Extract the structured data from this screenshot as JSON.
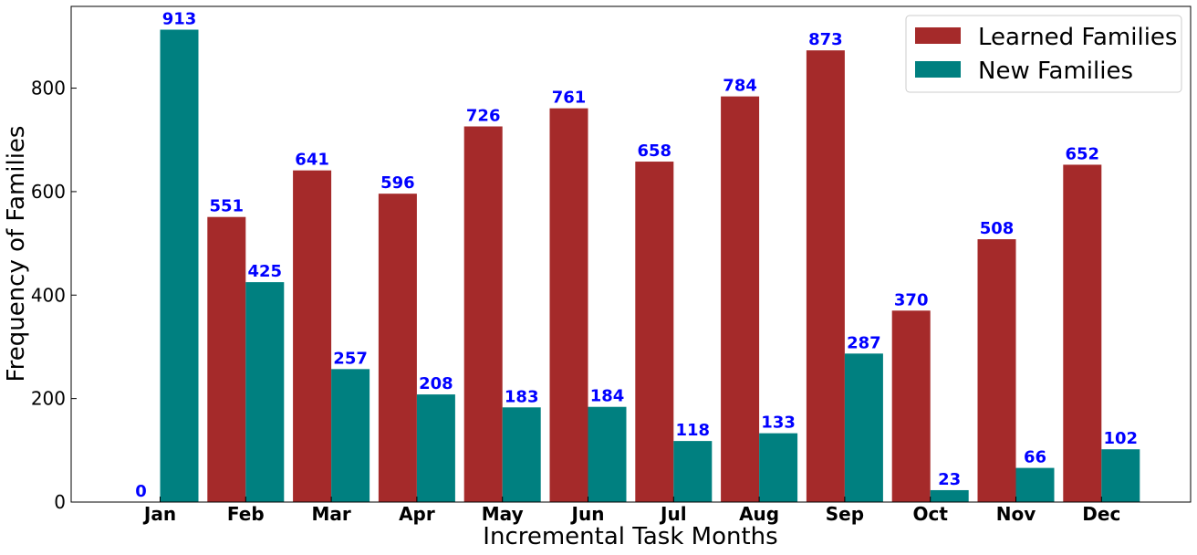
{
  "chart_data": {
    "type": "bar",
    "xlabel": "Incremental Task Months",
    "ylabel": "Frequency of Families",
    "categories": [
      "Jan",
      "Feb",
      "Mar",
      "Apr",
      "May",
      "Jun",
      "Jul",
      "Aug",
      "Sep",
      "Oct",
      "Nov",
      "Dec"
    ],
    "series": [
      {
        "name": "Learned Families",
        "color": "#a52a2a",
        "values": [
          0,
          551,
          641,
          596,
          726,
          761,
          658,
          784,
          873,
          370,
          508,
          652
        ]
      },
      {
        "name": "New Families",
        "color": "#008080",
        "values": [
          913,
          425,
          257,
          208,
          183,
          184,
          118,
          133,
          287,
          23,
          66,
          102
        ]
      }
    ],
    "ylim": [
      0,
      958
    ],
    "yticks": [
      0,
      200,
      400,
      600,
      800
    ],
    "data_label_color": "#0000ff",
    "legend_position": "top-right",
    "grid": false
  }
}
